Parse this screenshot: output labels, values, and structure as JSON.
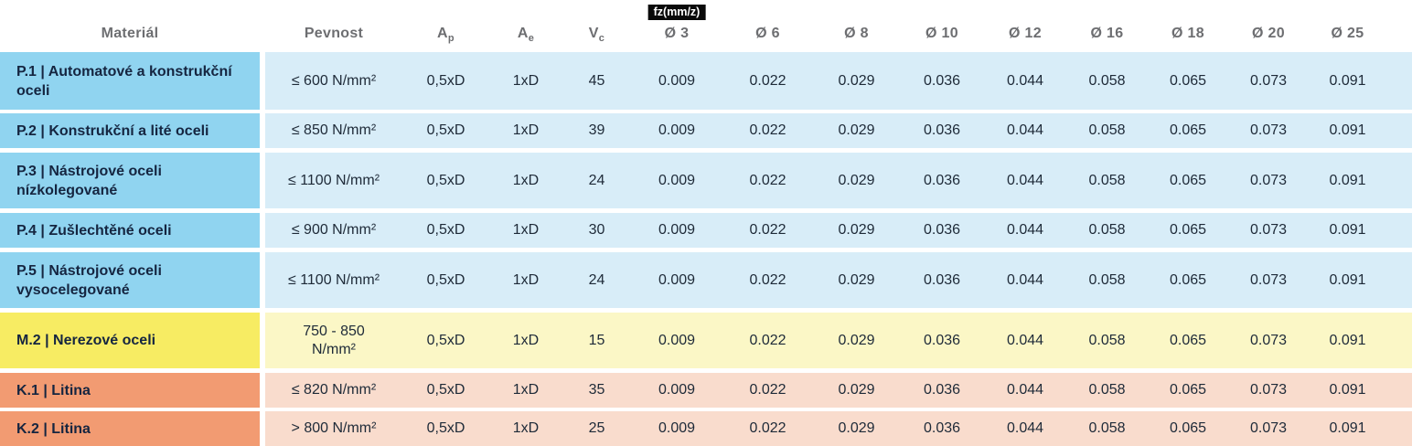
{
  "colors": {
    "p_label_bg": "#90d4f0",
    "p_data_bg": "#d8edf8",
    "m_label_bg": "#f7ec63",
    "m_data_bg": "#fbf7c6",
    "k_label_bg": "#f29b72",
    "k_data_bg": "#f9dccd",
    "header_text": "#6d6e71",
    "label_text": "#152540",
    "cell_text": "#1e2a38",
    "badge_bg": "#0a0a0a",
    "badge_text": "#ffffff"
  },
  "table": {
    "fz_badge": "fz(mm/z)",
    "headers": {
      "material": "Materiál",
      "pevnost": "Pevnost",
      "ap": {
        "base": "A",
        "sub": "p"
      },
      "ae": {
        "base": "A",
        "sub": "e"
      },
      "vc": {
        "base": "V",
        "sub": "c"
      },
      "diameters": [
        "Ø 3",
        "Ø 6",
        "Ø 8",
        "Ø 10",
        "Ø 12",
        "Ø 16",
        "Ø 18",
        "Ø 20",
        "Ø 25"
      ]
    },
    "rows": [
      {
        "group": "P",
        "material": "P.1 | Automatové a konstrukční oceli",
        "pevnost": "≤ 600 N/mm²",
        "ap": "0,5xD",
        "ae": "1xD",
        "vc": "45",
        "fz": [
          "0.009",
          "0.022",
          "0.029",
          "0.036",
          "0.044",
          "0.058",
          "0.065",
          "0.073",
          "0.091"
        ]
      },
      {
        "group": "P",
        "material": "P.2 | Konstrukční a lité oceli",
        "pevnost": "≤ 850 N/mm²",
        "ap": "0,5xD",
        "ae": "1xD",
        "vc": "39",
        "fz": [
          "0.009",
          "0.022",
          "0.029",
          "0.036",
          "0.044",
          "0.058",
          "0.065",
          "0.073",
          "0.091"
        ]
      },
      {
        "group": "P",
        "material": "P.3 | Nástrojové oceli nízkolegované",
        "pevnost": "≤ 1100 N/mm²",
        "ap": "0,5xD",
        "ae": "1xD",
        "vc": "24",
        "fz": [
          "0.009",
          "0.022",
          "0.029",
          "0.036",
          "0.044",
          "0.058",
          "0.065",
          "0.073",
          "0.091"
        ]
      },
      {
        "group": "P",
        "material": "P.4 | Zušlechtěné oceli",
        "pevnost": "≤ 900 N/mm²",
        "ap": "0,5xD",
        "ae": "1xD",
        "vc": "30",
        "fz": [
          "0.009",
          "0.022",
          "0.029",
          "0.036",
          "0.044",
          "0.058",
          "0.065",
          "0.073",
          "0.091"
        ]
      },
      {
        "group": "P",
        "material": "P.5 | Nástrojové oceli vysocelegované",
        "pevnost": "≤ 1100 N/mm²",
        "ap": "0,5xD",
        "ae": "1xD",
        "vc": "24",
        "fz": [
          "0.009",
          "0.022",
          "0.029",
          "0.036",
          "0.044",
          "0.058",
          "0.065",
          "0.073",
          "0.091"
        ]
      },
      {
        "group": "M",
        "material": "M.2 | Nerezové oceli",
        "pevnost": "750 - 850 N/mm²",
        "ap": "0,5xD",
        "ae": "1xD",
        "vc": "15",
        "fz": [
          "0.009",
          "0.022",
          "0.029",
          "0.036",
          "0.044",
          "0.058",
          "0.065",
          "0.073",
          "0.091"
        ]
      },
      {
        "group": "K",
        "material": "K.1 | Litina",
        "pevnost": "≤ 820 N/mm²",
        "ap": "0,5xD",
        "ae": "1xD",
        "vc": "35",
        "fz": [
          "0.009",
          "0.022",
          "0.029",
          "0.036",
          "0.044",
          "0.058",
          "0.065",
          "0.073",
          "0.091"
        ]
      },
      {
        "group": "K",
        "material": "K.2 | Litina",
        "pevnost": "> 800 N/mm²",
        "ap": "0,5xD",
        "ae": "1xD",
        "vc": "25",
        "fz": [
          "0.009",
          "0.022",
          "0.029",
          "0.036",
          "0.044",
          "0.058",
          "0.065",
          "0.073",
          "0.091"
        ]
      }
    ]
  }
}
